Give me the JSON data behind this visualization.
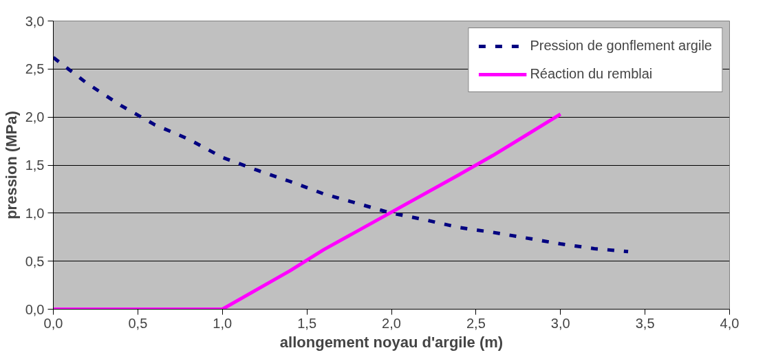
{
  "chart_data": {
    "type": "line",
    "xlabel": "allongement noyau d'argile (m)",
    "ylabel": "pression (MPa)",
    "xlim": [
      0,
      4
    ],
    "ylim": [
      0,
      3
    ],
    "xticks": [
      {
        "value": 0,
        "label": "0,0"
      },
      {
        "value": 0.5,
        "label": "0,5"
      },
      {
        "value": 1,
        "label": "1,0"
      },
      {
        "value": 1.5,
        "label": "1,5"
      },
      {
        "value": 2,
        "label": "2,0"
      },
      {
        "value": 2.5,
        "label": "2,5"
      },
      {
        "value": 3,
        "label": "3,0"
      },
      {
        "value": 3.5,
        "label": "3,5"
      },
      {
        "value": 4,
        "label": "4,0"
      }
    ],
    "yticks": [
      {
        "value": 0,
        "label": "0,0"
      },
      {
        "value": 0.5,
        "label": "0,5"
      },
      {
        "value": 1,
        "label": "1,0"
      },
      {
        "value": 1.5,
        "label": "1,5"
      },
      {
        "value": 2,
        "label": "2,0"
      },
      {
        "value": 2.5,
        "label": "2,5"
      },
      {
        "value": 3,
        "label": "3,0"
      }
    ],
    "grid": "y",
    "legend": "top right",
    "series": [
      {
        "name": "Pression de gonflement argile",
        "color": "#000080",
        "line_style": "dashed",
        "x": [
          0,
          0.2,
          0.4,
          0.6,
          0.8,
          1.0,
          1.2,
          1.4,
          1.6,
          1.8,
          2.0,
          2.2,
          2.4,
          2.6,
          2.8,
          3.0,
          3.2,
          3.4
        ],
        "values": [
          2.62,
          2.35,
          2.12,
          1.92,
          1.77,
          1.58,
          1.45,
          1.33,
          1.2,
          1.1,
          1.0,
          0.93,
          0.85,
          0.8,
          0.74,
          0.68,
          0.63,
          0.6
        ]
      },
      {
        "name": "Réaction du remblai",
        "color": "#ff00ff",
        "line_style": "solid",
        "x": [
          0,
          1.0,
          1.4,
          1.6,
          2.4,
          2.6,
          3.0
        ],
        "values": [
          0,
          0,
          0.4,
          0.62,
          1.4,
          1.6,
          2.03
        ]
      }
    ]
  }
}
